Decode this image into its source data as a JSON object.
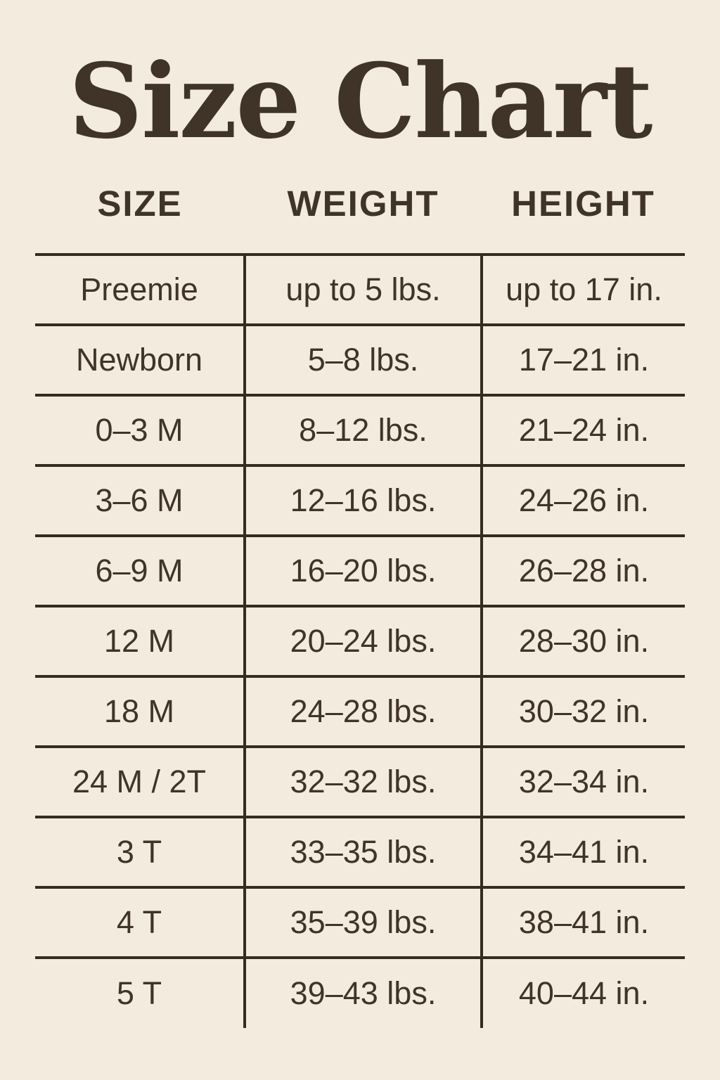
{
  "page": {
    "title": "Size Chart",
    "colors": {
      "background": "#f2ebde",
      "text": "#3f3427",
      "line": "#352b1f"
    }
  },
  "chart_data": {
    "type": "table",
    "title": "Size Chart",
    "columns": [
      "SIZE",
      "WEIGHT",
      "HEIGHT"
    ],
    "rows": [
      [
        "Preemie",
        "up to 5 lbs.",
        "up to 17 in."
      ],
      [
        "Newborn",
        "5–8 lbs.",
        "17–21 in."
      ],
      [
        "0–3 M",
        "8–12 lbs.",
        "21–24 in."
      ],
      [
        "3–6 M",
        "12–16 lbs.",
        "24–26 in."
      ],
      [
        "6–9 M",
        "16–20 lbs.",
        "26–28 in."
      ],
      [
        "12 M",
        "20–24 lbs.",
        "28–30 in."
      ],
      [
        "18 M",
        "24–28 lbs.",
        "30–32 in."
      ],
      [
        "24 M / 2T",
        "32–32 lbs.",
        "32–34 in."
      ],
      [
        "3 T",
        "33–35 lbs.",
        "34–41 in."
      ],
      [
        "4 T",
        "35–39 lbs.",
        "38–41 in."
      ],
      [
        "5 T",
        "39–43 lbs.",
        "40–44 in."
      ]
    ]
  }
}
